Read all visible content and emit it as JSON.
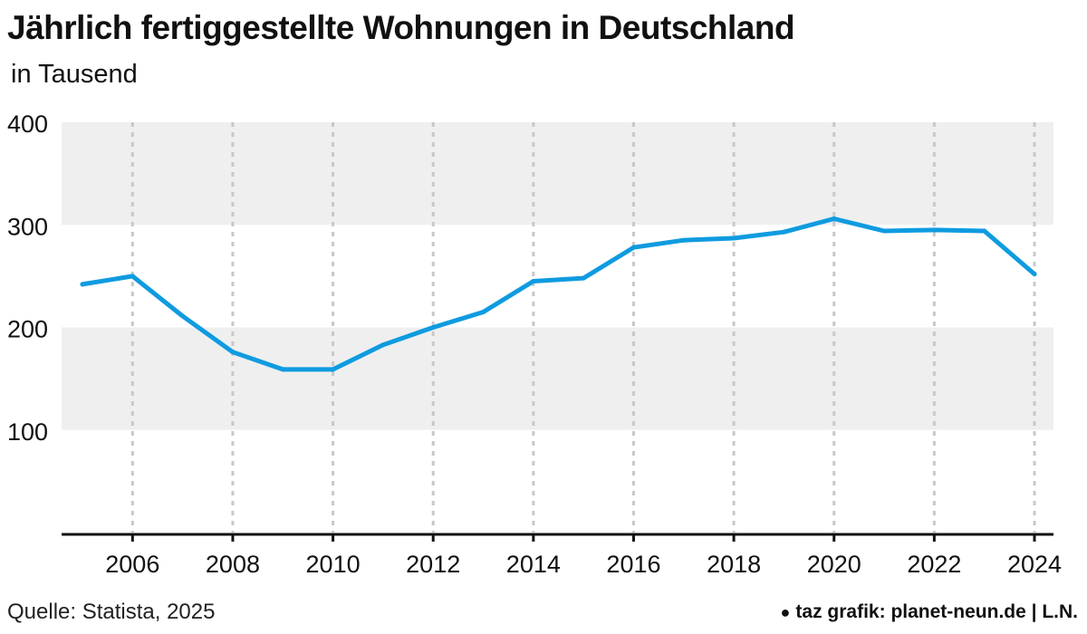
{
  "title": "Jährlich fertiggestellte Wohnungen in Deutschland",
  "subtitle": "in Tausend",
  "source": "Quelle: Statista, 2025",
  "credit": "taz grafik: planet-neun.de | L.N.",
  "colors": {
    "line": "#0f9be0",
    "band": "#efefef",
    "grid": "#c8c8c8",
    "axis": "#111111"
  },
  "chart_data": {
    "type": "line",
    "title": "Jährlich fertiggestellte Wohnungen in Deutschland",
    "subtitle": "in Tausend",
    "xlabel": "",
    "ylabel": "",
    "xlim": [
      2005,
      2024
    ],
    "ylim": [
      0,
      400
    ],
    "yticks": [
      100,
      200,
      300,
      400
    ],
    "xticks": [
      2006,
      2008,
      2010,
      2012,
      2014,
      2016,
      2018,
      2020,
      2022,
      2024
    ],
    "grid": "vertical dashed at x ticks, alternating horizontal bands",
    "legend": "none",
    "series": [
      {
        "x": [
          2005,
          2006,
          2007,
          2008,
          2009,
          2010,
          2011,
          2012,
          2013,
          2014,
          2015,
          2016,
          2017,
          2018,
          2019,
          2020,
          2021,
          2022,
          2023,
          2024
        ],
        "values": [
          242,
          250,
          211,
          176,
          159,
          159,
          183,
          200,
          215,
          245,
          248,
          278,
          285,
          287,
          293,
          306,
          294,
          295,
          294,
          252
        ]
      }
    ]
  }
}
